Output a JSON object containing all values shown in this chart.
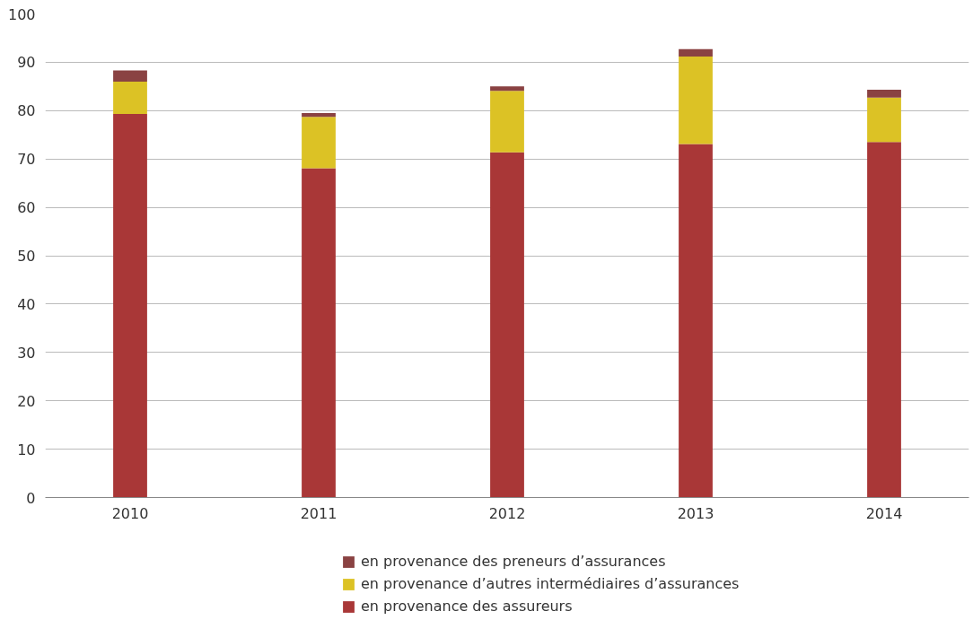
{
  "chart_data": {
    "type": "bar",
    "stacked": true,
    "categories": [
      "2010",
      "2011",
      "2012",
      "2013",
      "2014"
    ],
    "series": [
      {
        "name": "en provenance des assureurs",
        "color": "#a93737",
        "values": [
          79.3,
          68.1,
          71.4,
          73.1,
          73.5
        ]
      },
      {
        "name": "en provenance d’autres intermédiaires d’assurances",
        "color": "#dcc225",
        "values": [
          6.7,
          10.6,
          12.7,
          18.1,
          9.2
        ]
      },
      {
        "name": "en provenance des preneurs d’assurances",
        "color": "#8a4242",
        "values": [
          2.3,
          0.8,
          0.9,
          1.5,
          1.6
        ]
      }
    ],
    "ylim": [
      0,
      100
    ],
    "yticks": [
      0,
      10,
      20,
      30,
      40,
      50,
      60,
      70,
      80,
      90,
      100
    ],
    "grid": "y",
    "legend": "bottom"
  }
}
